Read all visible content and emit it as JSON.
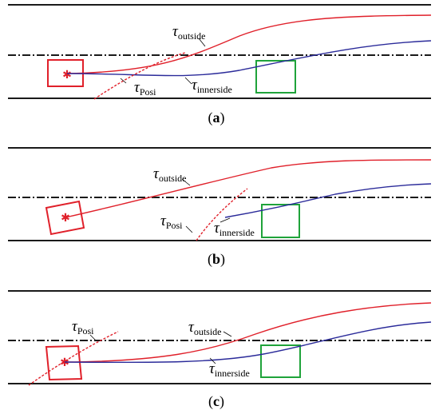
{
  "symbol": "τ",
  "labels": {
    "outside": "outside",
    "innerside": "innerside",
    "posi": "Posi"
  },
  "panels": [
    {
      "open": "(",
      "letter": "a",
      "close": ")"
    },
    {
      "open": "(",
      "letter": "b",
      "close": ")"
    },
    {
      "open": "(",
      "letter": "c",
      "close": ")"
    }
  ],
  "colors": {
    "road": "#1a1a1a",
    "outside_path": "#e0202a",
    "innerside_path": "#2b2b9a",
    "vehicle": "#e0202a",
    "target_slot": "#1fa33a",
    "center_line": "#1a1a1a"
  }
}
